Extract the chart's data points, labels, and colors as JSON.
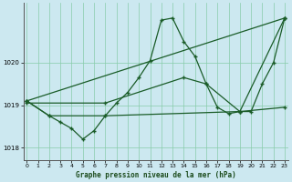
{
  "xlabel": "Graphe pression niveau de la mer (hPa)",
  "bg_color": "#cce8f0",
  "grid_color": "#88ccaa",
  "line_color": "#1a5c28",
  "ylim": [
    1017.7,
    1021.4
  ],
  "xlim": [
    -0.3,
    23.3
  ],
  "yticks": [
    1018,
    1019,
    1020
  ],
  "xticks": [
    0,
    1,
    2,
    3,
    4,
    5,
    6,
    7,
    8,
    9,
    10,
    11,
    12,
    13,
    14,
    15,
    16,
    17,
    18,
    19,
    20,
    21,
    22,
    23
  ],
  "series1_x": [
    0,
    2,
    3,
    4,
    5,
    6,
    7,
    8,
    9,
    10,
    11,
    12,
    13,
    14,
    15,
    16,
    17,
    18,
    19,
    20,
    21,
    22,
    23
  ],
  "series1_y": [
    1019.1,
    1018.75,
    1018.6,
    1018.45,
    1018.2,
    1018.4,
    1018.75,
    1019.05,
    1019.3,
    1019.65,
    1020.05,
    1021.0,
    1021.05,
    1020.5,
    1020.15,
    1019.5,
    1018.95,
    1018.8,
    1018.85,
    1018.85,
    1019.5,
    1020.0,
    1021.05
  ],
  "series2_x": [
    0,
    2,
    7,
    19,
    23
  ],
  "series2_y": [
    1019.1,
    1018.75,
    1018.75,
    1018.85,
    1018.95
  ],
  "series3_x": [
    0,
    23
  ],
  "series3_y": [
    1019.1,
    1021.05
  ],
  "series4_x": [
    0,
    7,
    14,
    16,
    19,
    23
  ],
  "series4_y": [
    1019.05,
    1019.05,
    1019.65,
    1019.5,
    1018.85,
    1021.05
  ]
}
